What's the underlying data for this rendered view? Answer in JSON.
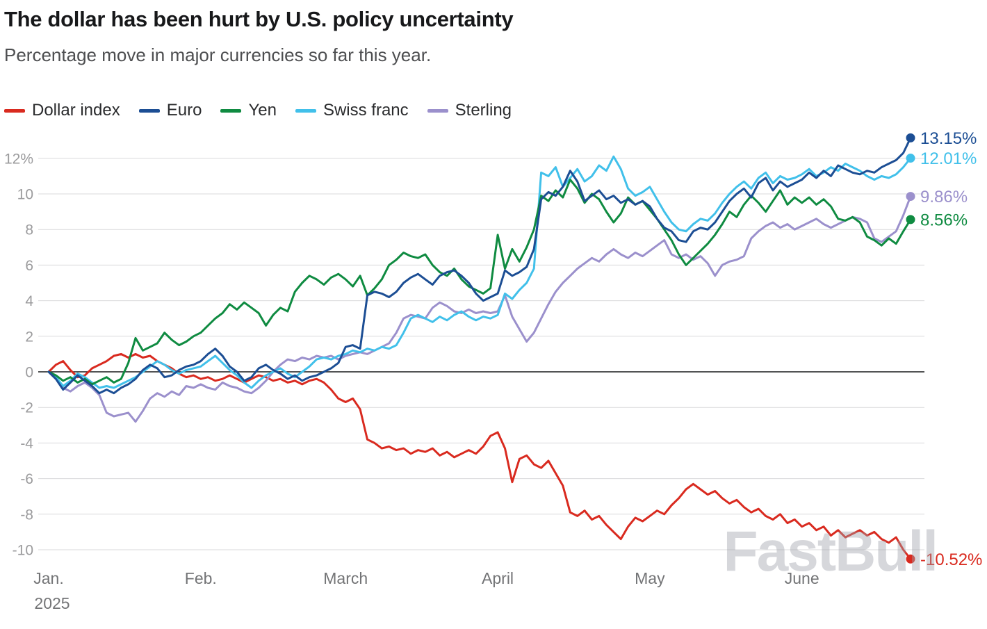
{
  "watermark": "FastBull",
  "chart_data": {
    "type": "line",
    "title": "The dollar has been hurt by U.S. policy uncertainty",
    "subtitle": "Percentage move in major currencies so far this year.",
    "grid": "horizontal-only",
    "legend_position": "top-left",
    "ylim": [
      -11.5,
      13.8
    ],
    "y_ticks": [
      {
        "value": 12,
        "label": "12%"
      },
      {
        "value": 10,
        "label": "10"
      },
      {
        "value": 8,
        "label": "8"
      },
      {
        "value": 6,
        "label": "6"
      },
      {
        "value": 4,
        "label": "4"
      },
      {
        "value": 2,
        "label": "2"
      },
      {
        "value": 0,
        "label": "0"
      },
      {
        "value": -2,
        "label": "-2"
      },
      {
        "value": -4,
        "label": "-4"
      },
      {
        "value": -6,
        "label": "-6"
      },
      {
        "value": -8,
        "label": "-8"
      },
      {
        "value": -10,
        "label": "-10"
      }
    ],
    "x_ticks": [
      {
        "index": 0,
        "label": "Jan.",
        "sub_label": "2025"
      },
      {
        "index": 21,
        "label": "Feb."
      },
      {
        "index": 41,
        "label": "March"
      },
      {
        "index": 62,
        "label": "April"
      },
      {
        "index": 83,
        "label": "May"
      },
      {
        "index": 104,
        "label": "June"
      }
    ],
    "series": [
      {
        "name": "Dollar index",
        "color": "#d92a1f",
        "end_label": "-10.52%",
        "end_value": -10.52,
        "values": [
          0.0,
          0.4,
          0.6,
          0.1,
          -0.3,
          -0.2,
          0.2,
          0.4,
          0.6,
          0.9,
          1.0,
          0.8,
          1.0,
          0.8,
          0.9,
          0.6,
          0.4,
          0.2,
          -0.1,
          -0.3,
          -0.2,
          -0.4,
          -0.3,
          -0.5,
          -0.4,
          -0.2,
          -0.4,
          -0.6,
          -0.4,
          -0.2,
          -0.3,
          -0.5,
          -0.4,
          -0.6,
          -0.5,
          -0.7,
          -0.5,
          -0.4,
          -0.6,
          -1.0,
          -1.5,
          -1.7,
          -1.5,
          -2.1,
          -3.8,
          -4.0,
          -4.3,
          -4.2,
          -4.4,
          -4.3,
          -4.6,
          -4.4,
          -4.5,
          -4.3,
          -4.7,
          -4.5,
          -4.8,
          -4.6,
          -4.4,
          -4.6,
          -4.2,
          -3.6,
          -3.4,
          -4.3,
          -6.2,
          -4.9,
          -4.7,
          -5.2,
          -5.4,
          -5.0,
          -5.7,
          -6.4,
          -7.9,
          -8.1,
          -7.8,
          -8.3,
          -8.1,
          -8.6,
          -9.0,
          -9.4,
          -8.7,
          -8.2,
          -8.4,
          -8.1,
          -7.8,
          -8.0,
          -7.5,
          -7.1,
          -6.6,
          -6.3,
          -6.6,
          -6.9,
          -6.7,
          -7.1,
          -7.4,
          -7.2,
          -7.6,
          -7.9,
          -7.7,
          -8.1,
          -8.3,
          -8.0,
          -8.5,
          -8.3,
          -8.7,
          -8.5,
          -8.9,
          -8.7,
          -9.2,
          -8.9,
          -9.3,
          -9.1,
          -8.9,
          -9.2,
          -9.0,
          -9.4,
          -9.6,
          -9.3,
          -10.0,
          -10.52
        ]
      },
      {
        "name": "Euro",
        "color": "#1c4e94",
        "end_label": "13.15%",
        "end_value": 13.15,
        "values": [
          0.0,
          -0.4,
          -1.0,
          -0.6,
          -0.2,
          -0.5,
          -0.8,
          -1.2,
          -1.0,
          -1.2,
          -0.9,
          -0.7,
          -0.4,
          0.1,
          0.4,
          0.2,
          -0.3,
          -0.2,
          0.1,
          0.3,
          0.4,
          0.6,
          1.0,
          1.3,
          0.9,
          0.3,
          0.0,
          -0.5,
          -0.3,
          0.2,
          0.4,
          0.1,
          -0.1,
          -0.4,
          -0.2,
          -0.5,
          -0.3,
          -0.2,
          0.0,
          0.2,
          0.5,
          1.4,
          1.5,
          1.3,
          4.3,
          4.5,
          4.4,
          4.2,
          4.5,
          5.0,
          5.3,
          5.5,
          5.2,
          4.9,
          5.4,
          5.6,
          5.7,
          5.4,
          5.0,
          4.4,
          4.0,
          4.2,
          4.4,
          5.7,
          5.4,
          5.6,
          5.9,
          6.9,
          9.7,
          10.1,
          9.9,
          10.4,
          11.3,
          10.7,
          9.6,
          9.9,
          10.2,
          9.7,
          9.9,
          9.5,
          9.7,
          9.4,
          9.6,
          9.3,
          8.6,
          8.1,
          7.9,
          7.4,
          7.3,
          7.9,
          8.1,
          8.0,
          8.4,
          9.0,
          9.6,
          10.0,
          10.3,
          9.8,
          10.6,
          10.9,
          10.2,
          10.7,
          10.4,
          10.6,
          10.8,
          11.2,
          10.9,
          11.3,
          11.0,
          11.6,
          11.4,
          11.2,
          11.1,
          11.3,
          11.2,
          11.5,
          11.7,
          11.9,
          12.3,
          13.15
        ]
      },
      {
        "name": "Yen",
        "color": "#0f8b41",
        "end_label": "8.56%",
        "end_value": 8.56,
        "values": [
          0.0,
          -0.2,
          -0.5,
          -0.3,
          -0.6,
          -0.4,
          -0.7,
          -0.5,
          -0.3,
          -0.6,
          -0.4,
          0.5,
          1.9,
          1.2,
          1.4,
          1.6,
          2.2,
          1.8,
          1.5,
          1.7,
          2.0,
          2.2,
          2.6,
          3.0,
          3.3,
          3.8,
          3.5,
          3.9,
          3.6,
          3.3,
          2.6,
          3.2,
          3.6,
          3.4,
          4.5,
          5.0,
          5.4,
          5.2,
          4.9,
          5.3,
          5.5,
          5.2,
          4.8,
          5.4,
          4.3,
          4.7,
          5.2,
          6.0,
          6.3,
          6.7,
          6.5,
          6.4,
          6.6,
          6.0,
          5.6,
          5.4,
          5.8,
          5.2,
          4.8,
          4.6,
          4.4,
          4.7,
          7.7,
          5.8,
          6.9,
          6.2,
          7.0,
          8.0,
          9.9,
          9.6,
          10.2,
          9.8,
          10.8,
          10.3,
          9.5,
          10.0,
          9.7,
          9.0,
          8.4,
          8.9,
          9.8,
          9.4,
          9.6,
          9.1,
          8.6,
          8.0,
          7.4,
          6.6,
          6.0,
          6.4,
          6.8,
          7.2,
          7.7,
          8.3,
          9.0,
          8.7,
          9.4,
          9.9,
          9.5,
          9.0,
          9.6,
          10.2,
          9.4,
          9.8,
          9.5,
          9.8,
          9.4,
          9.7,
          9.3,
          8.6,
          8.5,
          8.7,
          8.4,
          7.6,
          7.4,
          7.1,
          7.5,
          7.2,
          7.9,
          8.56
        ]
      },
      {
        "name": "Swiss franc",
        "color": "#41c0ea",
        "end_label": "12.01%",
        "end_value": 12.01,
        "values": [
          0.0,
          -0.3,
          -0.8,
          -0.5,
          -0.1,
          -0.3,
          -0.6,
          -0.9,
          -0.8,
          -0.9,
          -0.7,
          -0.5,
          -0.3,
          0.0,
          0.3,
          0.6,
          0.4,
          0.1,
          -0.1,
          0.1,
          0.2,
          0.3,
          0.6,
          0.9,
          0.5,
          0.1,
          -0.2,
          -0.6,
          -0.9,
          -0.5,
          -0.2,
          0.0,
          0.2,
          -0.1,
          -0.3,
          0.0,
          0.3,
          0.7,
          0.8,
          0.7,
          0.9,
          1.0,
          1.2,
          1.1,
          1.3,
          1.2,
          1.4,
          1.3,
          1.5,
          2.2,
          3.0,
          3.2,
          3.0,
          2.8,
          3.1,
          2.9,
          3.2,
          3.4,
          3.1,
          2.9,
          3.1,
          3.0,
          3.2,
          4.4,
          4.1,
          4.6,
          5.0,
          5.8,
          11.2,
          11.0,
          11.5,
          10.4,
          10.9,
          11.4,
          10.7,
          11.0,
          11.6,
          11.3,
          12.1,
          11.4,
          10.3,
          9.9,
          10.1,
          10.4,
          9.7,
          9.0,
          8.4,
          8.0,
          7.9,
          8.3,
          8.6,
          8.5,
          8.9,
          9.5,
          10.0,
          10.4,
          10.7,
          10.3,
          10.9,
          11.2,
          10.6,
          11.0,
          10.8,
          10.9,
          11.1,
          11.4,
          11.0,
          11.2,
          11.5,
          11.3,
          11.7,
          11.5,
          11.3,
          11.0,
          10.8,
          11.0,
          10.9,
          11.1,
          11.5,
          12.01
        ]
      },
      {
        "name": "Sterling",
        "color": "#9b90cc",
        "end_label": "9.86%",
        "end_value": 9.86,
        "values": [
          0.0,
          -0.4,
          -0.9,
          -1.1,
          -0.8,
          -0.6,
          -0.9,
          -1.3,
          -2.3,
          -2.5,
          -2.4,
          -2.3,
          -2.8,
          -2.2,
          -1.5,
          -1.2,
          -1.4,
          -1.1,
          -1.3,
          -0.8,
          -0.9,
          -0.7,
          -0.9,
          -1.0,
          -0.6,
          -0.8,
          -0.9,
          -1.1,
          -1.2,
          -0.9,
          -0.5,
          0.0,
          0.4,
          0.7,
          0.6,
          0.8,
          0.7,
          0.9,
          0.8,
          0.9,
          0.7,
          0.9,
          1.0,
          1.1,
          1.0,
          1.2,
          1.4,
          1.6,
          2.2,
          3.0,
          3.2,
          3.1,
          3.0,
          3.6,
          3.9,
          3.7,
          3.4,
          3.3,
          3.5,
          3.3,
          3.4,
          3.3,
          3.4,
          4.3,
          3.1,
          2.4,
          1.7,
          2.2,
          3.0,
          3.8,
          4.5,
          5.0,
          5.4,
          5.8,
          6.1,
          6.4,
          6.2,
          6.6,
          6.9,
          6.6,
          6.4,
          6.7,
          6.5,
          6.8,
          7.1,
          7.4,
          6.6,
          6.4,
          6.6,
          6.3,
          6.5,
          6.1,
          5.4,
          6.0,
          6.2,
          6.3,
          6.5,
          7.5,
          7.9,
          8.2,
          8.4,
          8.1,
          8.3,
          8.0,
          8.2,
          8.4,
          8.6,
          8.3,
          8.1,
          8.3,
          8.5,
          8.7,
          8.6,
          8.4,
          7.5,
          7.3,
          7.6,
          7.9,
          8.8,
          9.86
        ]
      }
    ]
  }
}
